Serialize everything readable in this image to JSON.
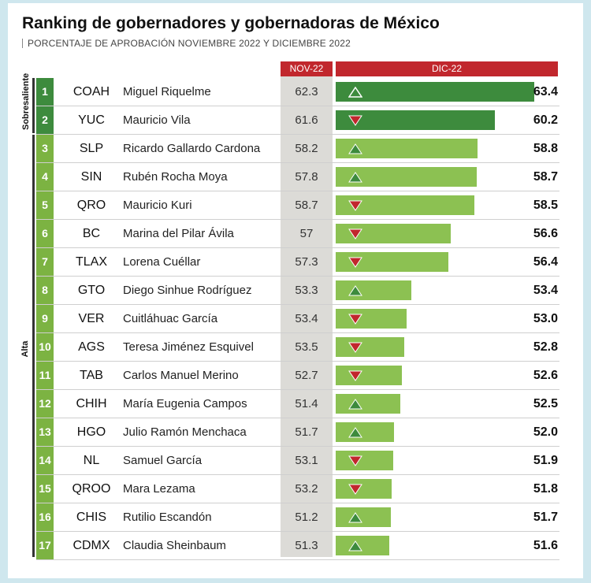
{
  "title": "Ranking de gobernadores y gobernadoras de México",
  "subtitle": "PORCENTAJE DE APROBACIÓN NOVIEMBRE 2022 Y DICIEMBRE 2022",
  "colors": {
    "header": "#c1272d",
    "bar_sobresaliente": "#3d8b3d",
    "bar_alta": "#8cc152",
    "rank_sobresaliente": "#3d8b3d",
    "rank_alta": "#7cb342",
    "arrow_up": "#3d8b3d",
    "arrow_down": "#c1272d"
  },
  "chart_data": {
    "type": "bar",
    "orientation": "horizontal",
    "columns": [
      "NOV-22",
      "DIC-22"
    ],
    "categories_groups": [
      {
        "label": "Sobresaliente",
        "ranks": [
          1,
          2
        ]
      },
      {
        "label": "Alta",
        "ranks": [
          3,
          17
        ]
      }
    ],
    "rows": [
      {
        "rank": "1",
        "state": "COAH",
        "name": "Miguel Riquelme",
        "nov": "62.3",
        "dic": "63.4",
        "trend": "up",
        "group": "Sobresaliente"
      },
      {
        "rank": "2",
        "state": "YUC",
        "name": "Mauricio Vila",
        "nov": "61.6",
        "dic": "60.2",
        "trend": "down",
        "group": "Sobresaliente"
      },
      {
        "rank": "3",
        "state": "SLP",
        "name": "Ricardo Gallardo Cardona",
        "nov": "58.2",
        "dic": "58.8",
        "trend": "up",
        "group": "Alta"
      },
      {
        "rank": "4",
        "state": "SIN",
        "name": "Rubén Rocha Moya",
        "nov": "57.8",
        "dic": "58.7",
        "trend": "up",
        "group": "Alta"
      },
      {
        "rank": "5",
        "state": "QRO",
        "name": "Mauricio Kuri",
        "nov": "58.7",
        "dic": "58.5",
        "trend": "down",
        "group": "Alta"
      },
      {
        "rank": "6",
        "state": "BC",
        "name": "Marina del Pilar Ávila",
        "nov": "57",
        "dic": "56.6",
        "trend": "down",
        "group": "Alta"
      },
      {
        "rank": "7",
        "state": "TLAX",
        "name": "Lorena Cuéllar",
        "nov": "57.3",
        "dic": "56.4",
        "trend": "down",
        "group": "Alta"
      },
      {
        "rank": "8",
        "state": "GTO",
        "name": "Diego Sinhue Rodríguez",
        "nov": "53.3",
        "dic": "53.4",
        "trend": "up",
        "group": "Alta"
      },
      {
        "rank": "9",
        "state": "VER",
        "name": "Cuitláhuac García",
        "nov": "53.4",
        "dic": "53.0",
        "trend": "down",
        "group": "Alta"
      },
      {
        "rank": "10",
        "state": "AGS",
        "name": "Teresa Jiménez Esquivel",
        "nov": "53.5",
        "dic": "52.8",
        "trend": "down",
        "group": "Alta"
      },
      {
        "rank": "11",
        "state": "TAB",
        "name": "Carlos Manuel Merino",
        "nov": "52.7",
        "dic": "52.6",
        "trend": "down",
        "group": "Alta"
      },
      {
        "rank": "12",
        "state": "CHIH",
        "name": "María Eugenia Campos",
        "nov": "51.4",
        "dic": "52.5",
        "trend": "up",
        "group": "Alta"
      },
      {
        "rank": "13",
        "state": "HGO",
        "name": "Julio Ramón Menchaca",
        "nov": "51.7",
        "dic": "52.0",
        "trend": "up",
        "group": "Alta"
      },
      {
        "rank": "14",
        "state": "NL",
        "name": "Samuel García",
        "nov": "53.1",
        "dic": "51.9",
        "trend": "down",
        "group": "Alta"
      },
      {
        "rank": "15",
        "state": "QROO",
        "name": "Mara Lezama",
        "nov": "53.2",
        "dic": "51.8",
        "trend": "down",
        "group": "Alta"
      },
      {
        "rank": "16",
        "state": "CHIS",
        "name": "Rutilio Escandón",
        "nov": "51.2",
        "dic": "51.7",
        "trend": "up",
        "group": "Alta"
      },
      {
        "rank": "17",
        "state": "CDMX",
        "name": "Claudia Sheinbaum",
        "nov": "51.3",
        "dic": "51.6",
        "trend": "up",
        "group": "Alta"
      }
    ]
  }
}
